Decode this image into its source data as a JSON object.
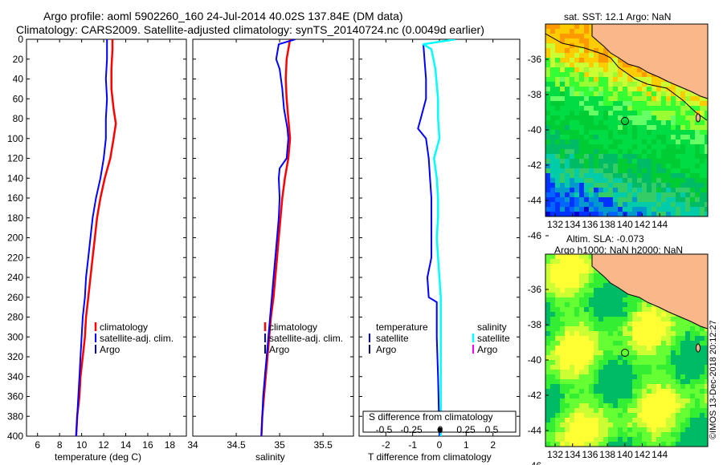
{
  "header": {
    "line1": "Argo profile: aoml 5902260_160 24-Jul-2014 40.02S 137.84E (DM data)",
    "line2": "Climatology: CARS2009. Satellite-adjusted climatology: synTS_20140724.nc (0.0049d earlier)"
  },
  "credit": "©IMOS 13-Dec-2018 20:12:27",
  "colors": {
    "climatology": "#ff0000",
    "satellite": "#0000ff",
    "argo": "#000080",
    "satellite_s": "#00ffff",
    "argo_s": "#ff00ff"
  },
  "chart_data": [
    {
      "type": "line",
      "name": "temperature",
      "xlabel": "temperature (deg C)",
      "ylabel": "",
      "xlim": [
        5,
        19.5
      ],
      "ylim": [
        400,
        0
      ],
      "xticks": [
        "6",
        "8",
        "10",
        "12",
        "14",
        "16",
        "18"
      ],
      "xtick_values": [
        6,
        8,
        10,
        12,
        14,
        16,
        18
      ],
      "yticks": [
        "0",
        "20",
        "40",
        "60",
        "80",
        "100",
        "120",
        "140",
        "160",
        "180",
        "200",
        "220",
        "240",
        "260",
        "280",
        "300",
        "320",
        "340",
        "360",
        "380",
        "400"
      ],
      "ytick_values": [
        0,
        20,
        40,
        60,
        80,
        100,
        120,
        140,
        160,
        180,
        200,
        220,
        240,
        260,
        280,
        300,
        320,
        340,
        360,
        380,
        400
      ],
      "legend": [
        "climatology",
        "satellite-adj. clim.",
        "Argo"
      ],
      "series": [
        {
          "name": "climatology",
          "color": "#ff0000",
          "width": 2.5,
          "points": [
            [
              12.8,
              0
            ],
            [
              12.8,
              10
            ],
            [
              12.7,
              30
            ],
            [
              12.7,
              50
            ],
            [
              12.9,
              70
            ],
            [
              13.1,
              85
            ],
            [
              12.9,
              100
            ],
            [
              12.6,
              120
            ],
            [
              12.1,
              140
            ],
            [
              11.7,
              160
            ],
            [
              11.4,
              180
            ],
            [
              11.2,
              200
            ],
            [
              11.0,
              220
            ],
            [
              10.8,
              240
            ],
            [
              10.6,
              260
            ],
            [
              10.4,
              280
            ],
            [
              10.3,
              300
            ],
            [
              10.1,
              320
            ],
            [
              9.9,
              340
            ],
            [
              9.8,
              360
            ],
            [
              9.6,
              380
            ],
            [
              9.5,
              400
            ]
          ]
        },
        {
          "name": "satellite-adj. clim.",
          "color": "#0000ff",
          "width": 2,
          "points": [
            [
              12.3,
              0
            ],
            [
              12.3,
              20
            ],
            [
              12.2,
              40
            ],
            [
              12.3,
              60
            ],
            [
              12.2,
              80
            ],
            [
              12.2,
              100
            ],
            [
              12.0,
              120
            ],
            [
              11.7,
              140
            ],
            [
              11.3,
              160
            ],
            [
              11.0,
              180
            ],
            [
              10.8,
              200
            ],
            [
              10.6,
              220
            ],
            [
              10.4,
              240
            ],
            [
              10.3,
              260
            ],
            [
              10.1,
              280
            ],
            [
              10.0,
              300
            ],
            [
              9.9,
              320
            ],
            [
              9.8,
              340
            ],
            [
              9.7,
              360
            ],
            [
              9.6,
              380
            ],
            [
              9.5,
              400
            ]
          ]
        }
      ]
    },
    {
      "type": "line",
      "name": "salinity",
      "xlabel": "salinity",
      "xlim": [
        34,
        35.85
      ],
      "ylim": [
        400,
        0
      ],
      "xticks": [
        "34",
        "34.5",
        "35",
        "35.5"
      ],
      "xtick_values": [
        34,
        34.5,
        35,
        35.5
      ],
      "legend": [
        "climatology",
        "satellite-adj. clim.",
        "Argo"
      ],
      "series": [
        {
          "name": "climatology",
          "color": "#ff0000",
          "width": 2.5,
          "points": [
            [
              35.12,
              0
            ],
            [
              35.08,
              20
            ],
            [
              35.07,
              40
            ],
            [
              35.08,
              60
            ],
            [
              35.1,
              80
            ],
            [
              35.12,
              100
            ],
            [
              35.1,
              120
            ],
            [
              35.06,
              140
            ],
            [
              35.03,
              160
            ],
            [
              35.01,
              180
            ],
            [
              34.99,
              200
            ],
            [
              34.97,
              220
            ],
            [
              34.95,
              240
            ],
            [
              34.93,
              260
            ],
            [
              34.9,
              280
            ],
            [
              34.88,
              300
            ],
            [
              34.86,
              320
            ],
            [
              34.84,
              340
            ],
            [
              34.82,
              360
            ],
            [
              34.8,
              380
            ],
            [
              34.79,
              400
            ]
          ]
        },
        {
          "name": "satellite-adj. clim.",
          "color": "#0000ff",
          "width": 2,
          "points": [
            [
              35.18,
              0
            ],
            [
              34.99,
              5
            ],
            [
              34.96,
              20
            ],
            [
              35.0,
              30
            ],
            [
              35.03,
              50
            ],
            [
              35.05,
              70
            ],
            [
              35.09,
              90
            ],
            [
              35.1,
              100
            ],
            [
              35.08,
              120
            ],
            [
              35.0,
              130
            ],
            [
              34.99,
              140
            ],
            [
              35.0,
              160
            ],
            [
              34.99,
              180
            ],
            [
              34.97,
              200
            ],
            [
              34.95,
              220
            ],
            [
              34.93,
              240
            ],
            [
              34.91,
              260
            ],
            [
              34.89,
              280
            ],
            [
              34.87,
              300
            ],
            [
              34.85,
              320
            ],
            [
              34.83,
              340
            ],
            [
              34.81,
              360
            ],
            [
              34.8,
              380
            ],
            [
              34.79,
              400
            ]
          ]
        }
      ]
    },
    {
      "type": "line",
      "name": "difference",
      "xlabel": "T difference from climatology",
      "xlabel_top": "S difference from climatology",
      "xlim": [
        -3,
        3
      ],
      "ylim": [
        400,
        0
      ],
      "xticks": [
        "-2",
        "-1",
        "0",
        "1",
        "2"
      ],
      "xtick_values": [
        -2,
        -1,
        0,
        1,
        2
      ],
      "sticks": [
        "-0.5",
        "-0.25",
        "0",
        "0.25",
        "0.5"
      ],
      "legend_left": {
        "heading": "temperature",
        "items": [
          "satellite",
          "Argo"
        ]
      },
      "legend_right": {
        "heading": "salinity",
        "items": [
          "satellite",
          "Argo"
        ]
      },
      "series": [
        {
          "name": "T satellite",
          "color": "#0000ff",
          "width": 2,
          "points": [
            [
              0.6,
              0
            ],
            [
              -0.6,
              5
            ],
            [
              -0.5,
              40
            ],
            [
              -0.5,
              60
            ],
            [
              -0.7,
              80
            ],
            [
              -0.8,
              90
            ],
            [
              -0.5,
              100
            ],
            [
              -0.4,
              120
            ],
            [
              -0.35,
              140
            ],
            [
              -0.3,
              160
            ],
            [
              -0.3,
              180
            ],
            [
              -0.3,
              200
            ],
            [
              -0.3,
              220
            ],
            [
              -0.45,
              240
            ],
            [
              -0.4,
              260
            ],
            [
              -0.1,
              265
            ],
            [
              -0.1,
              300
            ],
            [
              -0.05,
              340
            ],
            [
              0,
              400
            ]
          ]
        },
        {
          "name": "S satellite",
          "color": "#00ffff",
          "width": 2.5,
          "points": [
            [
              0.6,
              0
            ],
            [
              -0.6,
              5
            ],
            [
              -0.3,
              10
            ],
            [
              -0.15,
              30
            ],
            [
              -0.05,
              60
            ],
            [
              -0.05,
              80
            ],
            [
              0.0,
              100
            ],
            [
              -0.2,
              120
            ],
            [
              -0.1,
              140
            ],
            [
              -0.05,
              160
            ],
            [
              -0.05,
              180
            ],
            [
              -0.1,
              200
            ],
            [
              -0.05,
              220
            ],
            [
              0.0,
              240
            ],
            [
              0.05,
              260
            ],
            [
              0.05,
              300
            ],
            [
              0.05,
              340
            ],
            [
              0.05,
              400
            ]
          ]
        }
      ]
    }
  ],
  "maps": {
    "xticks": [
      "132",
      "134",
      "136",
      "138",
      "140",
      "142",
      "144"
    ],
    "yticks1": [
      "-36",
      "-38",
      "-40",
      "-42",
      "-44",
      "-46"
    ],
    "yticks2": [
      "-36",
      "-38",
      "-40",
      "-42",
      "-44",
      "-46"
    ],
    "sst_title": "sat. SST: 12.1 Argo: NaN",
    "sla_title1": "Altim. SLA: -0.073",
    "sla_title2": "Argo h1000: NaN h2000: NaN"
  }
}
